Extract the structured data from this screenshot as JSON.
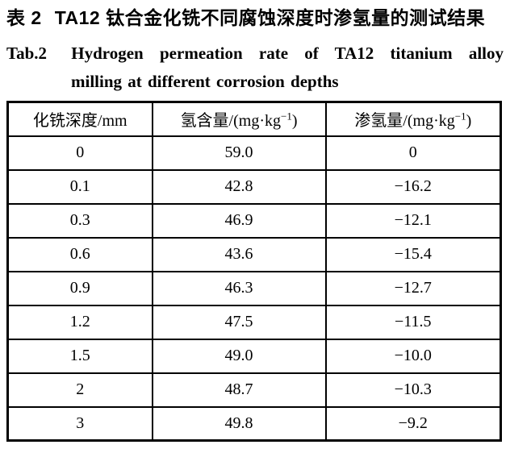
{
  "title": {
    "zh_label": "表 2",
    "zh_text": "TA12 钛合金化铣不同腐蚀深度时渗氢量的测试结果",
    "en_label": "Tab.2",
    "en_line1": "Hydrogen permeation rate of TA12 titanium alloy",
    "en_line2": "milling at different corrosion depths"
  },
  "table": {
    "columns": [
      {
        "pre": "化铣深度/mm",
        "sup": "",
        "post": ""
      },
      {
        "pre": "氢含量/(mg·kg",
        "sup": "−1",
        "post": ")"
      },
      {
        "pre": "渗氢量/(mg·kg",
        "sup": "−1",
        "post": ")"
      }
    ],
    "rows": [
      [
        "0",
        "59.0",
        "0"
      ],
      [
        "0.1",
        "42.8",
        "−16.2"
      ],
      [
        "0.3",
        "46.9",
        "−12.1"
      ],
      [
        "0.6",
        "43.6",
        "−15.4"
      ],
      [
        "0.9",
        "46.3",
        "−12.7"
      ],
      [
        "1.2",
        "47.5",
        "−11.5"
      ],
      [
        "1.5",
        "49.0",
        "−10.0"
      ],
      [
        "2",
        "48.7",
        "−10.3"
      ],
      [
        "3",
        "49.8",
        "−9.2"
      ]
    ]
  },
  "colors": {
    "text": "#000000",
    "background": "#ffffff",
    "border": "#000000"
  }
}
